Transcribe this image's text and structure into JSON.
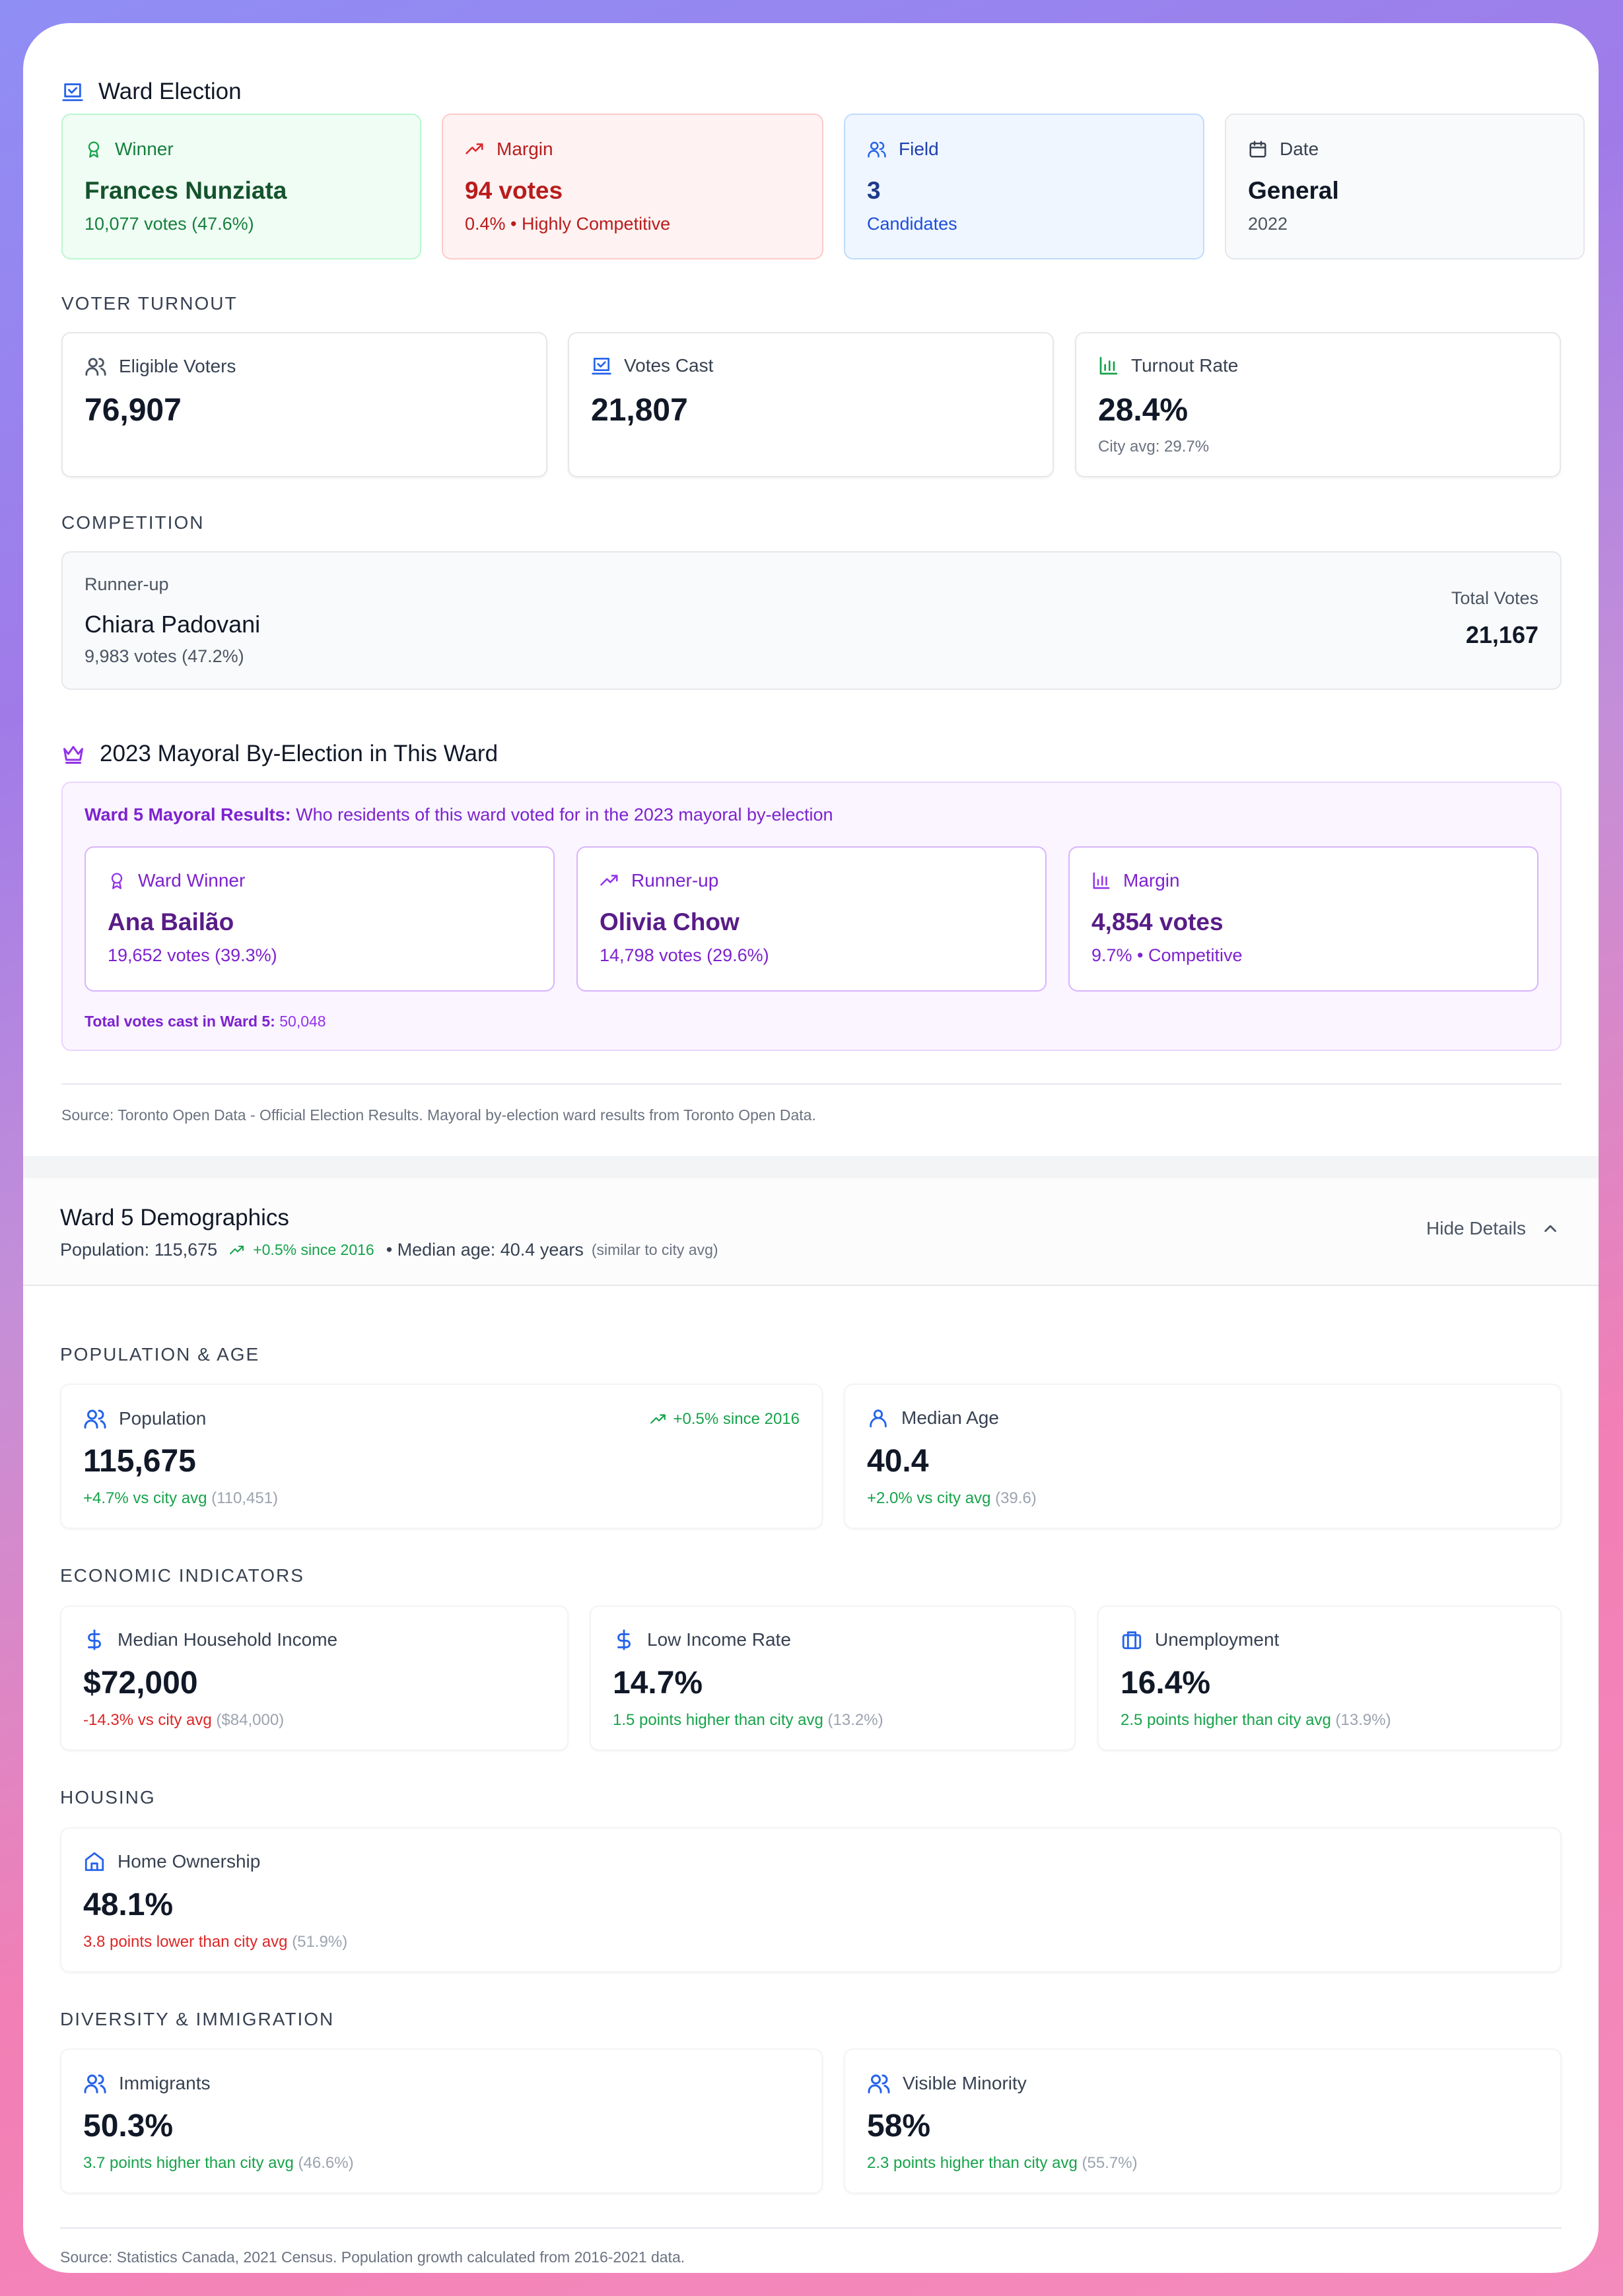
{
  "election": {
    "title": "Ward Election",
    "winner": {
      "label": "Winner",
      "name": "Frances Nunziata",
      "detail": "10,077 votes (47.6%)"
    },
    "margin": {
      "label": "Margin",
      "value": "94 votes",
      "detail": "0.4% • Highly Competitive"
    },
    "field": {
      "label": "Field",
      "value": "3",
      "detail": "Candidates"
    },
    "date": {
      "label": "Date",
      "value": "General",
      "detail": "2022"
    }
  },
  "turnout": {
    "heading": "VOTER TURNOUT",
    "eligible": {
      "label": "Eligible Voters",
      "value": "76,907"
    },
    "cast": {
      "label": "Votes Cast",
      "value": "21,807"
    },
    "rate": {
      "label": "Turnout Rate",
      "value": "28.4%",
      "detail": "City avg: 29.7%"
    }
  },
  "competition": {
    "heading": "COMPETITION",
    "runner_label": "Runner-up",
    "runner_name": "Chiara Padovani",
    "runner_detail": "9,983 votes (47.2%)",
    "total_label": "Total Votes",
    "total_value": "21,167"
  },
  "mayoral": {
    "title": "2023 Mayoral By-Election in This Ward",
    "intro_bold": "Ward 5 Mayoral Results:",
    "intro_rest": " Who residents of this ward voted for in the 2023 mayoral by-election",
    "winner": {
      "label": "Ward Winner",
      "name": "Ana Bailão",
      "detail": "19,652 votes (39.3%)"
    },
    "runner": {
      "label": "Runner-up",
      "name": "Olivia Chow",
      "detail": "14,798 votes (29.6%)"
    },
    "margin": {
      "label": "Margin",
      "value": "4,854 votes",
      "detail": "9.7% • Competitive"
    },
    "total_bold": "Total votes cast in Ward 5:",
    "total_value": " 50,048"
  },
  "source_election": "Source: Toronto Open Data - Official Election Results. Mayoral by-election ward results from Toronto Open Data.",
  "demographics": {
    "title": "Ward 5 Demographics",
    "summary_pop": "Population: 115,675",
    "summary_growth": "+0.5% since 2016",
    "summary_age": "• Median age: 40.4 years",
    "summary_age_note": "(similar to city avg)",
    "toggle_label": "Hide Details",
    "pop_age_heading": "POPULATION & AGE",
    "population": {
      "label": "Population",
      "badge": "+0.5% since 2016",
      "value": "115,675",
      "cmp": "+4.7% vs city avg",
      "avg": "(110,451)"
    },
    "median_age": {
      "label": "Median Age",
      "value": "40.4",
      "cmp": "+2.0% vs city avg",
      "avg": "(39.6)"
    },
    "econ_heading": "ECONOMIC INDICATORS",
    "income": {
      "label": "Median Household Income",
      "value": "$72,000",
      "cmp": "-14.3% vs city avg",
      "avg": "($84,000)"
    },
    "low_income": {
      "label": "Low Income Rate",
      "value": "14.7%",
      "cmp": "1.5 points higher than city avg",
      "avg": "(13.2%)"
    },
    "unemployment": {
      "label": "Unemployment",
      "value": "16.4%",
      "cmp": "2.5 points higher than city avg",
      "avg": "(13.9%)"
    },
    "housing_heading": "HOUSING",
    "home": {
      "label": "Home Ownership",
      "value": "48.1%",
      "cmp": "3.8 points lower than city avg",
      "avg": "(51.9%)"
    },
    "diversity_heading": "DIVERSITY & IMMIGRATION",
    "immigrants": {
      "label": "Immigrants",
      "value": "50.3%",
      "cmp": "3.7 points higher than city avg",
      "avg": "(46.6%)"
    },
    "minority": {
      "label": "Visible Minority",
      "value": "58%",
      "cmp": "2.3 points higher than city avg",
      "avg": "(55.7%)"
    },
    "source": "Source: Statistics Canada, 2021 Census. Population growth calculated from 2016-2021 data."
  },
  "colors": {
    "green": "#16a34a",
    "red": "#dc2626",
    "blue": "#2563eb",
    "purple": "#7e22ce"
  }
}
